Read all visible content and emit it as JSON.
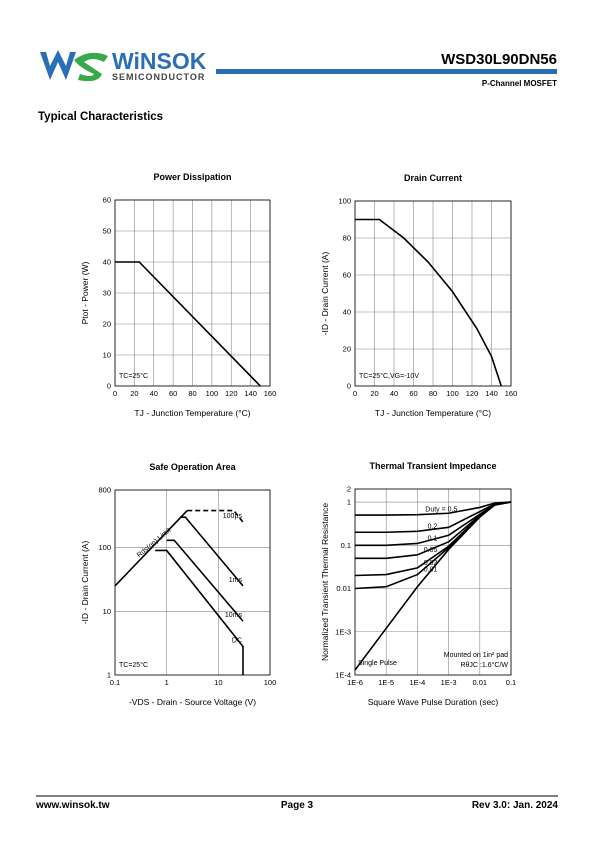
{
  "header": {
    "brand": "WiNSOK",
    "brand_sub": "SEMICONDUCTOR",
    "part_number": "WSD30L90DN56",
    "device_type": "P-Channel MOSFET",
    "section": "Typical Characteristics"
  },
  "footer": {
    "website": "www.winsok.tw",
    "page": "Page  3",
    "revision": "Rev 3.0: Jan. 2024"
  },
  "chart_data": [
    {
      "type": "line",
      "title": "Power Dissipation",
      "x_label": "TJ - Junction Temperature (°C)",
      "y_label": "Ptot - Power (W)",
      "xlim": [
        0,
        160
      ],
      "xticks": [
        0,
        20,
        40,
        60,
        80,
        100,
        120,
        140,
        160
      ],
      "ylim": [
        0,
        60
      ],
      "yticks": [
        0,
        10,
        20,
        30,
        40,
        50,
        60
      ],
      "grid": true,
      "annotations": [
        "TC=25°C"
      ],
      "series": [
        {
          "color": "#000000",
          "x": [
            0,
            25,
            150
          ],
          "values": [
            40,
            40,
            0
          ]
        }
      ]
    },
    {
      "type": "line",
      "title": "Drain Current",
      "x_label": "TJ - Junction Temperature (°C)",
      "y_label": "-ID - Drain Current (A)",
      "xlim": [
        0,
        160
      ],
      "xticks": [
        0,
        20,
        40,
        60,
        80,
        100,
        120,
        140,
        160
      ],
      "ylim": [
        0,
        100
      ],
      "yticks": [
        0,
        20,
        40,
        60,
        80,
        100
      ],
      "grid": true,
      "annotations": [
        "TC=25°C,VG=-10V"
      ],
      "series": [
        {
          "color": "#000000",
          "x": [
            0,
            25,
            50,
            75,
            100,
            125,
            140,
            150
          ],
          "values": [
            90,
            90,
            80,
            67,
            51,
            31,
            16,
            0
          ]
        }
      ]
    },
    {
      "type": "line",
      "title": "Safe Operation Area",
      "x_label": "-VDS - Drain - Source Voltage (V)",
      "y_label": "-ID - Drain Current (A)",
      "x_scale": "log",
      "y_scale": "log",
      "xlim": [
        0.1,
        100
      ],
      "xticks": [
        0.1,
        1,
        10,
        100
      ],
      "ylim": [
        1,
        800
      ],
      "yticks": [
        1,
        10,
        100,
        800
      ],
      "grid": true,
      "annotations": [
        "TC=25°C"
      ],
      "series": [
        {
          "name": "Rds(on) Limit",
          "color": "#000000",
          "x": [
            0.1,
            2.5
          ],
          "values": [
            25,
            380
          ]
        },
        {
          "name": "100µs",
          "color": "#000000",
          "dashed": true,
          "x": [
            2.5,
            20,
            30
          ],
          "values": [
            380,
            380,
            250
          ]
        },
        {
          "name": "1ms",
          "color": "#000000",
          "x": [
            1.8,
            2.3,
            30
          ],
          "values": [
            300,
            300,
            25
          ]
        },
        {
          "name": "10ms",
          "color": "#000000",
          "x": [
            1,
            1.4,
            30
          ],
          "values": [
            130,
            130,
            7
          ]
        },
        {
          "name": "DC",
          "color": "#000000",
          "x": [
            0.6,
            1,
            30,
            30
          ],
          "values": [
            90,
            90,
            2.8,
            1
          ]
        }
      ]
    },
    {
      "type": "line",
      "title": "Thermal Transient Impedance",
      "x_label": "Square Wave Pulse Duration (sec)",
      "y_label": "Normalized Transient Thermal Resistance",
      "x_scale": "log",
      "y_scale": "log",
      "xlim": [
        1e-06,
        0.1
      ],
      "xticks": [
        {
          "value": 1e-06,
          "label": "1E-6"
        },
        {
          "value": 1e-05,
          "label": "1E-5"
        },
        {
          "value": 0.0001,
          "label": "1E-4"
        },
        {
          "value": 0.001,
          "label": "1E-3"
        },
        0.01,
        0.1
      ],
      "ylim": [
        0.0001,
        2
      ],
      "yticks": [
        {
          "value": 0.0001,
          "label": "1E-4"
        },
        {
          "value": 0.001,
          "label": "1E-3"
        },
        0.01,
        0.1,
        1,
        2
      ],
      "grid": true,
      "annotations": [
        "Mounted on 1in² pad",
        "RθJC :1.6°C/W"
      ],
      "series": [
        {
          "name": "Duty = 0.5",
          "color": "#000000",
          "x": [
            1e-06,
            1e-05,
            0.0001,
            0.001,
            0.01,
            0.03,
            0.1
          ],
          "values": [
            0.5,
            0.5,
            0.51,
            0.55,
            0.75,
            0.95,
            1
          ]
        },
        {
          "name": "0.2",
          "color": "#000000",
          "x": [
            1e-06,
            1e-05,
            0.0001,
            0.001,
            0.01,
            0.03,
            0.1
          ],
          "values": [
            0.2,
            0.2,
            0.21,
            0.26,
            0.6,
            0.9,
            1
          ]
        },
        {
          "name": "0.1",
          "color": "#000000",
          "x": [
            1e-06,
            1e-05,
            0.0001,
            0.001,
            0.01,
            0.03,
            0.1
          ],
          "values": [
            0.1,
            0.1,
            0.11,
            0.17,
            0.52,
            0.88,
            1
          ]
        },
        {
          "name": "0.05",
          "color": "#000000",
          "x": [
            1e-06,
            1e-05,
            0.0001,
            0.001,
            0.01,
            0.03,
            0.1
          ],
          "values": [
            0.05,
            0.05,
            0.06,
            0.12,
            0.49,
            0.87,
            1
          ]
        },
        {
          "name": "0.02",
          "color": "#000000",
          "x": [
            1e-06,
            1e-05,
            0.0001,
            0.001,
            0.01,
            0.03,
            0.1
          ],
          "values": [
            0.02,
            0.021,
            0.03,
            0.095,
            0.47,
            0.86,
            1
          ]
        },
        {
          "name": "0.01",
          "color": "#000000",
          "x": [
            1e-06,
            1e-05,
            0.0001,
            0.001,
            0.01,
            0.03,
            0.1
          ],
          "values": [
            0.01,
            0.011,
            0.021,
            0.088,
            0.46,
            0.86,
            1
          ]
        },
        {
          "name": "Single Pulse",
          "color": "#000000",
          "x": [
            1e-06,
            1e-05,
            0.0001,
            0.001,
            0.01,
            0.03,
            0.1
          ],
          "values": [
            0.00013,
            0.0012,
            0.011,
            0.08,
            0.45,
            0.85,
            1
          ]
        }
      ]
    }
  ]
}
